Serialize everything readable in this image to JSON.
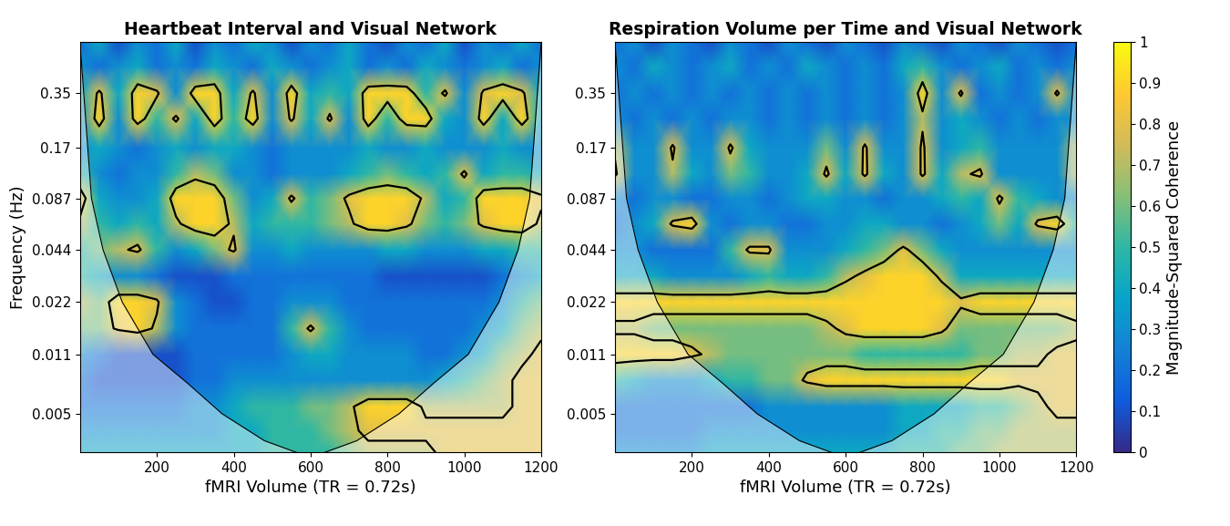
{
  "chart_data": [
    {
      "type": "heatmap",
      "title": "Heartbeat Interval and Visual Network",
      "x_label": "fMRI Volume (TR = 0.72s)",
      "y_label": "Frequency (Hz)",
      "xlim": [
        0,
        1200
      ],
      "xticks": [
        200,
        400,
        600,
        800,
        1000,
        1200
      ],
      "log": "y",
      "ylim": [
        0.003,
        0.69
      ],
      "yticks": [
        0.005,
        0.011,
        0.022,
        0.044,
        0.087,
        0.17,
        0.35
      ],
      "x": [
        0,
        50,
        100,
        150,
        200,
        250,
        300,
        350,
        400,
        450,
        500,
        550,
        600,
        650,
        700,
        750,
        800,
        850,
        900,
        950,
        1000,
        1050,
        1100,
        1150,
        1200
      ],
      "frequency": [
        0.003,
        0.004,
        0.0055,
        0.0078,
        0.011,
        0.0155,
        0.022,
        0.031,
        0.044,
        0.062,
        0.087,
        0.12,
        0.17,
        0.25,
        0.35,
        0.5,
        0.69
      ],
      "cells": [
        [
          0.4,
          0.4,
          0.4,
          0.4,
          0.4,
          0.4,
          0.4,
          0.4,
          0.4,
          0.4,
          0.5,
          0.5,
          0.5,
          0.5,
          0.6,
          0.7,
          0.7,
          0.7,
          0.7,
          0.8,
          0.8,
          0.8,
          0.8,
          0.8,
          0.8
        ],
        [
          0.3,
          0.3,
          0.3,
          0.3,
          0.3,
          0.3,
          0.3,
          0.3,
          0.4,
          0.4,
          0.5,
          0.5,
          0.5,
          0.6,
          0.7,
          0.8,
          0.8,
          0.8,
          0.8,
          0.8,
          0.8,
          0.8,
          0.8,
          0.8,
          0.8
        ],
        [
          0.2,
          0.2,
          0.2,
          0.2,
          0.2,
          0.2,
          0.3,
          0.3,
          0.4,
          0.5,
          0.5,
          0.5,
          0.6,
          0.6,
          0.7,
          0.9,
          0.9,
          0.9,
          0.7,
          0.7,
          0.7,
          0.7,
          0.7,
          0.8,
          0.8
        ],
        [
          0.2,
          0.1,
          0.1,
          0.1,
          0.1,
          0.1,
          0.2,
          0.2,
          0.3,
          0.3,
          0.3,
          0.3,
          0.3,
          0.3,
          0.3,
          0.3,
          0.3,
          0.3,
          0.3,
          0.4,
          0.5,
          0.6,
          0.7,
          0.8,
          0.8
        ],
        [
          0.3,
          0.2,
          0.1,
          0.1,
          0.1,
          0.1,
          0.2,
          0.2,
          0.2,
          0.2,
          0.2,
          0.3,
          0.4,
          0.4,
          0.3,
          0.3,
          0.3,
          0.3,
          0.2,
          0.2,
          0.3,
          0.4,
          0.6,
          0.7,
          0.8
        ],
        [
          0.6,
          0.6,
          0.8,
          0.9,
          0.7,
          0.3,
          0.2,
          0.2,
          0.2,
          0.2,
          0.2,
          0.5,
          0.8,
          0.5,
          0.3,
          0.2,
          0.2,
          0.2,
          0.2,
          0.2,
          0.2,
          0.3,
          0.4,
          0.6,
          0.7
        ],
        [
          0.7,
          0.6,
          0.9,
          0.9,
          0.8,
          0.3,
          0.2,
          0.1,
          0.1,
          0.2,
          0.2,
          0.3,
          0.3,
          0.3,
          0.2,
          0.2,
          0.2,
          0.2,
          0.2,
          0.2,
          0.2,
          0.2,
          0.3,
          0.5,
          0.6
        ],
        [
          0.5,
          0.4,
          0.3,
          0.3,
          0.2,
          0.1,
          0.1,
          0.1,
          0.2,
          0.2,
          0.2,
          0.2,
          0.2,
          0.2,
          0.2,
          0.2,
          0.1,
          0.1,
          0.1,
          0.1,
          0.1,
          0.1,
          0.2,
          0.3,
          0.4
        ],
        [
          0.5,
          0.6,
          0.7,
          0.8,
          0.5,
          0.3,
          0.4,
          0.6,
          0.8,
          0.3,
          0.3,
          0.4,
          0.3,
          0.3,
          0.3,
          0.3,
          0.4,
          0.4,
          0.3,
          0.3,
          0.3,
          0.4,
          0.4,
          0.5,
          0.5
        ],
        [
          0.7,
          0.5,
          0.4,
          0.5,
          0.4,
          0.7,
          0.9,
          0.9,
          0.7,
          0.4,
          0.5,
          0.5,
          0.5,
          0.6,
          0.7,
          0.9,
          0.9,
          0.8,
          0.6,
          0.5,
          0.6,
          0.8,
          0.9,
          0.9,
          0.7
        ],
        [
          0.9,
          0.4,
          0.3,
          0.3,
          0.4,
          0.9,
          0.9,
          0.9,
          0.6,
          0.3,
          0.4,
          0.8,
          0.5,
          0.6,
          0.8,
          0.9,
          0.9,
          0.9,
          0.7,
          0.4,
          0.5,
          0.9,
          0.9,
          0.9,
          0.8
        ],
        [
          0.5,
          0.3,
          0.2,
          0.3,
          0.3,
          0.5,
          0.7,
          0.6,
          0.3,
          0.3,
          0.2,
          0.3,
          0.3,
          0.3,
          0.4,
          0.5,
          0.6,
          0.5,
          0.4,
          0.5,
          0.8,
          0.4,
          0.5,
          0.5,
          0.4
        ],
        [
          0.3,
          0.4,
          0.3,
          0.2,
          0.3,
          0.4,
          0.3,
          0.4,
          0.4,
          0.3,
          0.2,
          0.3,
          0.3,
          0.3,
          0.3,
          0.4,
          0.3,
          0.3,
          0.4,
          0.3,
          0.3,
          0.3,
          0.4,
          0.3,
          0.3
        ],
        [
          0.3,
          0.9,
          0.3,
          0.9,
          0.5,
          0.8,
          0.4,
          0.9,
          0.5,
          0.9,
          0.3,
          0.8,
          0.4,
          0.8,
          0.3,
          0.9,
          0.5,
          0.9,
          0.9,
          0.4,
          0.3,
          0.9,
          0.4,
          0.9,
          0.4
        ],
        [
          0.4,
          0.8,
          0.4,
          0.9,
          0.8,
          0.3,
          0.9,
          0.9,
          0.4,
          0.8,
          0.3,
          0.9,
          0.4,
          0.5,
          0.4,
          0.9,
          0.9,
          0.9,
          0.5,
          0.8,
          0.3,
          0.8,
          0.9,
          0.8,
          0.4
        ],
        [
          0.3,
          0.2,
          0.3,
          0.4,
          0.2,
          0.3,
          0.2,
          0.4,
          0.3,
          0.2,
          0.4,
          0.3,
          0.2,
          0.3,
          0.4,
          0.2,
          0.3,
          0.2,
          0.4,
          0.3,
          0.2,
          0.3,
          0.4,
          0.2,
          0.3
        ],
        [
          0.2,
          0.4,
          0.1,
          0.3,
          0.2,
          0.4,
          0.1,
          0.3,
          0.2,
          0.4,
          0.3,
          0.1,
          0.3,
          0.2,
          0.4,
          0.2,
          0.1,
          0.3,
          0.2,
          0.4,
          0.1,
          0.3,
          0.2,
          0.4,
          0.2
        ]
      ],
      "coi": {
        "x": [
          0,
          30,
          60,
          110,
          190,
          280,
          370,
          480,
          600,
          720,
          830,
          920,
          1010,
          1090,
          1140,
          1170,
          1200
        ],
        "frequency": [
          0.69,
          0.087,
          0.044,
          0.022,
          0.011,
          0.0075,
          0.005,
          0.0035,
          0.0028,
          0.0035,
          0.005,
          0.0075,
          0.011,
          0.022,
          0.044,
          0.087,
          0.69
        ]
      }
    },
    {
      "type": "heatmap",
      "title": "Respiration Volume per Time and Visual Network",
      "x_label": "fMRI Volume (TR = 0.72s)",
      "xlim": [
        0,
        1200
      ],
      "xticks": [
        200,
        400,
        600,
        800,
        1000,
        1200
      ],
      "log": "y",
      "ylim": [
        0.003,
        0.69
      ],
      "yticks": [
        0.005,
        0.011,
        0.022,
        0.044,
        0.087,
        0.17,
        0.35
      ],
      "x": [
        0,
        50,
        100,
        150,
        200,
        250,
        300,
        350,
        400,
        450,
        500,
        550,
        600,
        650,
        700,
        750,
        800,
        850,
        900,
        950,
        1000,
        1050,
        1100,
        1150,
        1200
      ],
      "frequency": [
        0.003,
        0.004,
        0.0055,
        0.0078,
        0.011,
        0.0155,
        0.022,
        0.031,
        0.044,
        0.062,
        0.087,
        0.12,
        0.17,
        0.25,
        0.35,
        0.5,
        0.69
      ],
      "cells": [
        [
          0.3,
          0.3,
          0.3,
          0.3,
          0.3,
          0.4,
          0.4,
          0.4,
          0.4,
          0.4,
          0.4,
          0.4,
          0.4,
          0.4,
          0.4,
          0.5,
          0.5,
          0.5,
          0.6,
          0.6,
          0.7,
          0.7,
          0.7,
          0.7,
          0.7
        ],
        [
          0.2,
          0.2,
          0.2,
          0.2,
          0.2,
          0.3,
          0.3,
          0.3,
          0.3,
          0.3,
          0.3,
          0.3,
          0.3,
          0.3,
          0.3,
          0.4,
          0.4,
          0.5,
          0.5,
          0.6,
          0.6,
          0.7,
          0.7,
          0.7,
          0.7
        ],
        [
          0.2,
          0.2,
          0.2,
          0.2,
          0.2,
          0.2,
          0.2,
          0.2,
          0.3,
          0.3,
          0.3,
          0.3,
          0.3,
          0.3,
          0.3,
          0.4,
          0.4,
          0.4,
          0.4,
          0.5,
          0.5,
          0.6,
          0.7,
          0.8,
          0.8
        ],
        [
          0.5,
          0.4,
          0.3,
          0.3,
          0.3,
          0.4,
          0.5,
          0.5,
          0.6,
          0.6,
          0.8,
          0.9,
          0.9,
          0.9,
          0.9,
          0.9,
          0.9,
          0.9,
          0.9,
          0.9,
          0.9,
          0.8,
          0.8,
          0.8,
          0.8
        ],
        [
          0.9,
          0.9,
          0.9,
          0.9,
          0.8,
          0.7,
          0.6,
          0.6,
          0.6,
          0.6,
          0.6,
          0.6,
          0.6,
          0.5,
          0.5,
          0.5,
          0.5,
          0.5,
          0.5,
          0.6,
          0.6,
          0.7,
          0.7,
          0.8,
          0.8
        ],
        [
          0.7,
          0.7,
          0.6,
          0.6,
          0.6,
          0.6,
          0.6,
          0.6,
          0.6,
          0.6,
          0.6,
          0.7,
          0.8,
          0.9,
          0.9,
          0.9,
          0.9,
          0.8,
          0.6,
          0.6,
          0.6,
          0.6,
          0.6,
          0.6,
          0.7
        ],
        [
          0.9,
          0.9,
          0.9,
          0.9,
          0.9,
          0.9,
          0.9,
          0.9,
          0.9,
          0.9,
          0.9,
          0.9,
          0.9,
          0.9,
          0.9,
          0.9,
          0.9,
          0.9,
          0.8,
          0.9,
          0.9,
          0.9,
          0.9,
          0.9,
          0.9
        ],
        [
          0.4,
          0.4,
          0.4,
          0.3,
          0.3,
          0.3,
          0.3,
          0.4,
          0.5,
          0.4,
          0.4,
          0.5,
          0.7,
          0.8,
          0.9,
          0.9,
          0.9,
          0.7,
          0.4,
          0.4,
          0.4,
          0.4,
          0.4,
          0.4,
          0.4
        ],
        [
          0.3,
          0.3,
          0.2,
          0.2,
          0.2,
          0.2,
          0.5,
          0.8,
          0.8,
          0.3,
          0.3,
          0.3,
          0.4,
          0.5,
          0.6,
          0.8,
          0.6,
          0.4,
          0.3,
          0.3,
          0.3,
          0.3,
          0.3,
          0.3,
          0.3
        ],
        [
          0.2,
          0.3,
          0.4,
          0.8,
          0.9,
          0.3,
          0.2,
          0.3,
          0.3,
          0.2,
          0.2,
          0.3,
          0.3,
          0.4,
          0.4,
          0.3,
          0.3,
          0.2,
          0.3,
          0.4,
          0.6,
          0.4,
          0.8,
          0.9,
          0.5
        ],
        [
          0.3,
          0.2,
          0.3,
          0.3,
          0.2,
          0.2,
          0.3,
          0.3,
          0.2,
          0.3,
          0.4,
          0.4,
          0.3,
          0.3,
          0.2,
          0.3,
          0.3,
          0.4,
          0.5,
          0.4,
          0.8,
          0.5,
          0.4,
          0.3,
          0.3
        ],
        [
          0.8,
          0.3,
          0.3,
          0.7,
          0.4,
          0.3,
          0.6,
          0.5,
          0.3,
          0.3,
          0.4,
          0.8,
          0.4,
          0.8,
          0.4,
          0.3,
          0.8,
          0.4,
          0.7,
          0.8,
          0.3,
          0.3,
          0.3,
          0.3,
          0.7
        ],
        [
          0.7,
          0.3,
          0.3,
          0.8,
          0.3,
          0.3,
          0.8,
          0.4,
          0.3,
          0.3,
          0.3,
          0.6,
          0.3,
          0.8,
          0.3,
          0.3,
          0.8,
          0.3,
          0.4,
          0.5,
          0.3,
          0.3,
          0.3,
          0.3,
          0.7
        ],
        [
          0.3,
          0.2,
          0.3,
          0.2,
          0.3,
          0.2,
          0.3,
          0.3,
          0.2,
          0.3,
          0.2,
          0.3,
          0.2,
          0.3,
          0.2,
          0.3,
          0.7,
          0.3,
          0.4,
          0.3,
          0.2,
          0.3,
          0.2,
          0.3,
          0.3
        ],
        [
          0.2,
          0.3,
          0.2,
          0.3,
          0.2,
          0.3,
          0.2,
          0.3,
          0.2,
          0.3,
          0.2,
          0.3,
          0.2,
          0.3,
          0.2,
          0.3,
          0.9,
          0.3,
          0.8,
          0.2,
          0.3,
          0.2,
          0.3,
          0.8,
          0.3
        ],
        [
          0.3,
          0.2,
          0.4,
          0.3,
          0.2,
          0.3,
          0.4,
          0.2,
          0.3,
          0.2,
          0.4,
          0.3,
          0.2,
          0.3,
          0.2,
          0.4,
          0.5,
          0.3,
          0.2,
          0.3,
          0.4,
          0.2,
          0.3,
          0.2,
          0.3
        ],
        [
          0.2,
          0.3,
          0.1,
          0.3,
          0.2,
          0.1,
          0.3,
          0.2,
          0.1,
          0.3,
          0.2,
          0.1,
          0.3,
          0.2,
          0.1,
          0.3,
          0.2,
          0.1,
          0.3,
          0.2,
          0.1,
          0.3,
          0.2,
          0.1,
          0.2
        ]
      ],
      "coi": {
        "x": [
          0,
          30,
          60,
          110,
          190,
          280,
          370,
          480,
          600,
          720,
          830,
          920,
          1010,
          1090,
          1140,
          1170,
          1200
        ],
        "frequency": [
          0.69,
          0.087,
          0.044,
          0.022,
          0.011,
          0.0075,
          0.005,
          0.0035,
          0.0028,
          0.0035,
          0.005,
          0.0075,
          0.011,
          0.022,
          0.044,
          0.087,
          0.69
        ]
      },
      "colorbar_label": "Magnitude-Squared Coherence",
      "colorbar_range": [
        0,
        1
      ],
      "colorbar_ticks": [
        0,
        0.1,
        0.2,
        0.3,
        0.4,
        0.5,
        0.6,
        0.7,
        0.8,
        0.9,
        1
      ]
    }
  ]
}
